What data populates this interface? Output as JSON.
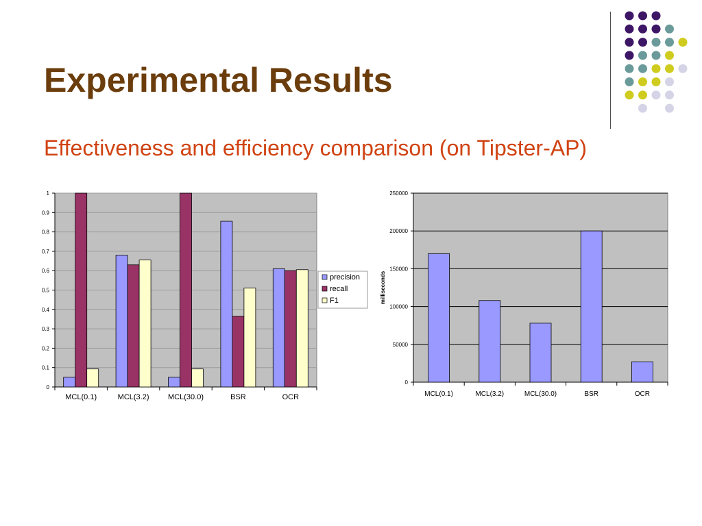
{
  "slide": {
    "title": "Experimental Results",
    "subtitle": "Effectiveness and efficiency comparison (on Tipster-AP)"
  },
  "decoration": {
    "dot_colors": [
      "#3e1666",
      "#6a9b9a",
      "#cfcc1f",
      "#d5d4e7"
    ]
  },
  "chart_data": [
    {
      "type": "bar",
      "categories": [
        "MCL(0.1)",
        "MCL(3.2)",
        "MCL(30.0)",
        "BSR",
        "OCR"
      ],
      "series": [
        {
          "name": "precision",
          "color": "#9999ff",
          "values": [
            0.05,
            0.68,
            0.05,
            0.855,
            0.61
          ]
        },
        {
          "name": "recall",
          "color": "#993366",
          "values": [
            1.0,
            0.63,
            1.0,
            0.365,
            0.6
          ]
        },
        {
          "name": "F1",
          "color": "#ffffcc",
          "values": [
            0.093,
            0.655,
            0.093,
            0.51,
            0.605
          ]
        }
      ],
      "ylim": [
        0,
        1
      ],
      "yticks": [
        "0",
        "0.1",
        "0.2",
        "0.3",
        "0.4",
        "0.5",
        "0.6",
        "0.7",
        "0.8",
        "0.9",
        "1"
      ],
      "ytick_values": [
        0,
        0.1,
        0.2,
        0.3,
        0.4,
        0.5,
        0.6,
        0.7,
        0.8,
        0.9,
        1
      ],
      "grid": true,
      "plot_background": "#c0c0c0",
      "legend": "right",
      "xlabel": "",
      "ylabel": "",
      "title": ""
    },
    {
      "type": "bar",
      "categories": [
        "MCL(0.1)",
        "MCL(3.2)",
        "MCL(30.0)",
        "BSR",
        "OCR"
      ],
      "series": [
        {
          "color": "#9999ff",
          "values": [
            170000,
            108000,
            78000,
            200000,
            27000
          ]
        }
      ],
      "ylim": [
        0,
        250000
      ],
      "yticks": [
        "0",
        "50000",
        "100000",
        "150000",
        "200000",
        "250000"
      ],
      "ytick_values": [
        0,
        50000,
        100000,
        150000,
        200000,
        250000
      ],
      "grid": true,
      "plot_background": "#c0c0c0",
      "legend": "none",
      "ylabel": "milliseconds",
      "xlabel": "",
      "title": ""
    }
  ]
}
